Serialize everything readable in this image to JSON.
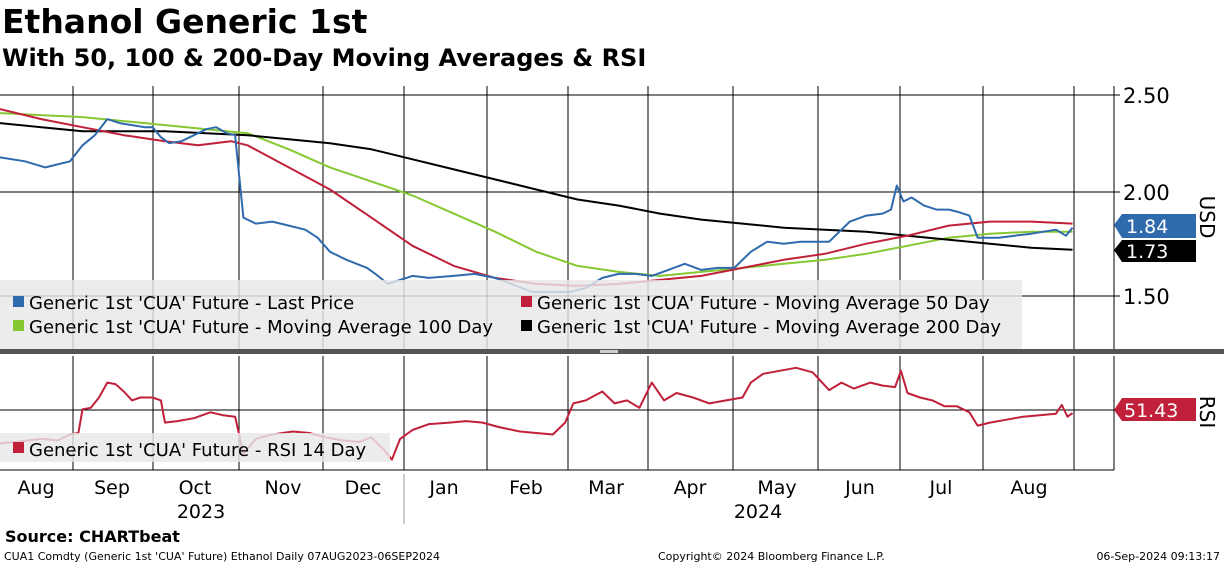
{
  "title": "Ethanol Generic 1st",
  "subtitle": "With 50, 100 & 200-Day Moving Averages & RSI",
  "source": "Source: CHARTbeat",
  "footer": {
    "left": "CUA1 Comdty (Generic 1st 'CUA' Future) Ethanol  Daily 07AUG2023-06SEP2024",
    "center": "Copyright© 2024 Bloomberg Finance L.P.",
    "right": "06-Sep-2024 09:13:17"
  },
  "colors": {
    "price": "#2f6aad",
    "ma50": "#c0203a",
    "ma100": "#86c832",
    "ma200": "#000000",
    "rsi": "#c0203a"
  },
  "chart_data": [
    {
      "type": "line",
      "panel": "price",
      "ylabel": "USD",
      "ylim": [
        1.28,
        2.55
      ],
      "yticks": [
        "2.50",
        "2.00",
        "1.50"
      ],
      "legend_position": "bottom-left",
      "x_months": [
        "Aug",
        "Sep",
        "Oct",
        "Nov",
        "Dec",
        "Jan",
        "Feb",
        "Mar",
        "Apr",
        "May",
        "Jun",
        "Jul",
        "Aug"
      ],
      "x_years": [
        "2023",
        "2024"
      ],
      "series": [
        {
          "name": "Generic 1st 'CUA' Future - Last Price",
          "color_key": "price",
          "last_label": "1.84",
          "points": [
            [
              0,
              2.19
            ],
            [
              0.3,
              2.17
            ],
            [
              0.55,
              2.14
            ],
            [
              0.85,
              2.17
            ],
            [
              1,
              2.25
            ],
            [
              1.15,
              2.3
            ],
            [
              1.3,
              2.38
            ],
            [
              1.45,
              2.36
            ],
            [
              1.6,
              2.35
            ],
            [
              1.75,
              2.34
            ],
            [
              1.85,
              2.34
            ],
            [
              1.95,
              2.29
            ],
            [
              2.05,
              2.26
            ],
            [
              2.2,
              2.27
            ],
            [
              2.35,
              2.3
            ],
            [
              2.5,
              2.33
            ],
            [
              2.62,
              2.34
            ],
            [
              2.75,
              2.31
            ],
            [
              2.85,
              2.3
            ],
            [
              2.95,
              1.89
            ],
            [
              3.1,
              1.86
            ],
            [
              3.3,
              1.87
            ],
            [
              3.5,
              1.85
            ],
            [
              3.7,
              1.83
            ],
            [
              3.85,
              1.79
            ],
            [
              4.0,
              1.72
            ],
            [
              4.2,
              1.68
            ],
            [
              4.45,
              1.64
            ],
            [
              4.55,
              1.61
            ],
            [
              4.7,
              1.56
            ],
            [
              4.85,
              1.58
            ],
            [
              5.0,
              1.6
            ],
            [
              5.2,
              1.59
            ],
            [
              5.5,
              1.6
            ],
            [
              5.75,
              1.61
            ],
            [
              6.0,
              1.59
            ],
            [
              6.2,
              1.56
            ],
            [
              6.45,
              1.52
            ],
            [
              6.7,
              1.52
            ],
            [
              6.9,
              1.52
            ],
            [
              7.1,
              1.54
            ],
            [
              7.3,
              1.59
            ],
            [
              7.5,
              1.61
            ],
            [
              7.7,
              1.61
            ],
            [
              7.9,
              1.6
            ],
            [
              8.1,
              1.63
            ],
            [
              8.3,
              1.66
            ],
            [
              8.5,
              1.63
            ],
            [
              8.7,
              1.64
            ],
            [
              8.9,
              1.64
            ],
            [
              9.1,
              1.72
            ],
            [
              9.3,
              1.77
            ],
            [
              9.5,
              1.76
            ],
            [
              9.7,
              1.77
            ],
            [
              9.9,
              1.77
            ],
            [
              10.05,
              1.77
            ],
            [
              10.3,
              1.87
            ],
            [
              10.5,
              1.9
            ],
            [
              10.7,
              1.91
            ],
            [
              10.8,
              1.93
            ],
            [
              10.87,
              2.05
            ],
            [
              10.95,
              1.97
            ],
            [
              11.05,
              1.99
            ],
            [
              11.2,
              1.95
            ],
            [
              11.35,
              1.93
            ],
            [
              11.5,
              1.93
            ],
            [
              11.6,
              1.92
            ],
            [
              11.75,
              1.9
            ],
            [
              11.85,
              1.79
            ],
            [
              11.95,
              1.79
            ],
            [
              12.1,
              1.79
            ],
            [
              12.3,
              1.8
            ],
            [
              12.5,
              1.81
            ],
            [
              12.65,
              1.82
            ],
            [
              12.8,
              1.83
            ],
            [
              12.92,
              1.8
            ],
            [
              13.0,
              1.84
            ]
          ]
        },
        {
          "name": "Generic 1st 'CUA' Future - Moving Average 50 Day",
          "color_key": "ma50",
          "points": [
            [
              0,
              2.43
            ],
            [
              0.5,
              2.38
            ],
            [
              1.0,
              2.34
            ],
            [
              1.5,
              2.3
            ],
            [
              2.0,
              2.27
            ],
            [
              2.4,
              2.25
            ],
            [
              2.8,
              2.27
            ],
            [
              3.0,
              2.25
            ],
            [
              3.5,
              2.14
            ],
            [
              4.0,
              2.03
            ],
            [
              4.5,
              1.89
            ],
            [
              5.0,
              1.75
            ],
            [
              5.5,
              1.65
            ],
            [
              6.0,
              1.59
            ],
            [
              6.5,
              1.56
            ],
            [
              7.0,
              1.55
            ],
            [
              7.5,
              1.56
            ],
            [
              8.0,
              1.58
            ],
            [
              8.5,
              1.6
            ],
            [
              9.0,
              1.64
            ],
            [
              9.5,
              1.68
            ],
            [
              10.0,
              1.71
            ],
            [
              10.5,
              1.76
            ],
            [
              11.0,
              1.8
            ],
            [
              11.5,
              1.85
            ],
            [
              12.0,
              1.87
            ],
            [
              12.5,
              1.87
            ],
            [
              13.0,
              1.86
            ]
          ]
        },
        {
          "name": "Generic 1st 'CUA' Future - Moving Average 100 Day",
          "color_key": "ma100",
          "points": [
            [
              0,
              2.41
            ],
            [
              0.5,
              2.4
            ],
            [
              1.0,
              2.39
            ],
            [
              1.5,
              2.37
            ],
            [
              2.0,
              2.35
            ],
            [
              2.5,
              2.33
            ],
            [
              3.0,
              2.31
            ],
            [
              3.5,
              2.23
            ],
            [
              4.0,
              2.14
            ],
            [
              4.5,
              2.07
            ],
            [
              5.0,
              2.0
            ],
            [
              5.5,
              1.91
            ],
            [
              6.0,
              1.82
            ],
            [
              6.5,
              1.72
            ],
            [
              7.0,
              1.65
            ],
            [
              7.5,
              1.62
            ],
            [
              8.0,
              1.6
            ],
            [
              8.5,
              1.62
            ],
            [
              9.0,
              1.64
            ],
            [
              9.5,
              1.66
            ],
            [
              10.0,
              1.68
            ],
            [
              10.5,
              1.71
            ],
            [
              11.0,
              1.75
            ],
            [
              11.5,
              1.79
            ],
            [
              12.0,
              1.81
            ],
            [
              12.5,
              1.82
            ],
            [
              13.0,
              1.82
            ]
          ]
        },
        {
          "name": "Generic 1st 'CUA' Future - Moving Average 200 Day",
          "color_key": "ma200",
          "last_label": "1.73",
          "points": [
            [
              0,
              2.36
            ],
            [
              0.5,
              2.34
            ],
            [
              1.0,
              2.32
            ],
            [
              1.5,
              2.32
            ],
            [
              2.0,
              2.32
            ],
            [
              2.5,
              2.31
            ],
            [
              3.0,
              2.3
            ],
            [
              3.5,
              2.28
            ],
            [
              4.0,
              2.26
            ],
            [
              4.5,
              2.23
            ],
            [
              5.0,
              2.18
            ],
            [
              5.5,
              2.13
            ],
            [
              6.0,
              2.08
            ],
            [
              6.5,
              2.03
            ],
            [
              7.0,
              1.98
            ],
            [
              7.5,
              1.95
            ],
            [
              8.0,
              1.91
            ],
            [
              8.5,
              1.88
            ],
            [
              9.0,
              1.86
            ],
            [
              9.5,
              1.84
            ],
            [
              10.0,
              1.83
            ],
            [
              10.5,
              1.82
            ],
            [
              11.0,
              1.8
            ],
            [
              11.5,
              1.78
            ],
            [
              12.0,
              1.76
            ],
            [
              12.5,
              1.74
            ],
            [
              13.0,
              1.73
            ]
          ]
        }
      ]
    },
    {
      "type": "line",
      "panel": "rsi",
      "ylabel": "RSI",
      "ylim": [
        13,
        90
      ],
      "legend_position": "bottom-left",
      "series": [
        {
          "name": "Generic 1st 'CUA' Future - RSI 14 Day",
          "color_key": "rsi",
          "last_label": "51.43",
          "points": [
            [
              0,
              31
            ],
            [
              0.2,
              32
            ],
            [
              0.5,
              34
            ],
            [
              0.7,
              33
            ],
            [
              0.85,
              37
            ],
            [
              0.95,
              38
            ],
            [
              1.0,
              54
            ],
            [
              1.1,
              55
            ],
            [
              1.2,
              62
            ],
            [
              1.3,
              72
            ],
            [
              1.4,
              71
            ],
            [
              1.5,
              66
            ],
            [
              1.6,
              60
            ],
            [
              1.7,
              62
            ],
            [
              1.85,
              62
            ],
            [
              1.95,
              60
            ],
            [
              2.0,
              45
            ],
            [
              2.15,
              46
            ],
            [
              2.35,
              48
            ],
            [
              2.55,
              52
            ],
            [
              2.7,
              50
            ],
            [
              2.85,
              49
            ],
            [
              2.95,
              24
            ],
            [
              3.1,
              34
            ],
            [
              3.3,
              37
            ],
            [
              3.55,
              39
            ],
            [
              3.75,
              38
            ],
            [
              3.95,
              35
            ],
            [
              4.15,
              33
            ],
            [
              4.35,
              32
            ],
            [
              4.5,
              35
            ],
            [
              4.65,
              27
            ],
            [
              4.75,
              20
            ],
            [
              4.85,
              34
            ],
            [
              5.0,
              40
            ],
            [
              5.2,
              44
            ],
            [
              5.45,
              45
            ],
            [
              5.65,
              46
            ],
            [
              5.85,
              45
            ],
            [
              6.05,
              42
            ],
            [
              6.3,
              39
            ],
            [
              6.5,
              38
            ],
            [
              6.7,
              37
            ],
            [
              6.85,
              45
            ],
            [
              6.95,
              58
            ],
            [
              7.1,
              60
            ],
            [
              7.3,
              66
            ],
            [
              7.45,
              58
            ],
            [
              7.6,
              60
            ],
            [
              7.75,
              55
            ],
            [
              7.9,
              72
            ],
            [
              8.05,
              60
            ],
            [
              8.2,
              65
            ],
            [
              8.4,
              62
            ],
            [
              8.6,
              58
            ],
            [
              8.8,
              60
            ],
            [
              9.0,
              62
            ],
            [
              9.1,
              72
            ],
            [
              9.25,
              78
            ],
            [
              9.45,
              80
            ],
            [
              9.65,
              82
            ],
            [
              9.85,
              79
            ],
            [
              10.05,
              67
            ],
            [
              10.2,
              72
            ],
            [
              10.35,
              68
            ],
            [
              10.55,
              72
            ],
            [
              10.7,
              70
            ],
            [
              10.85,
              69
            ],
            [
              10.92,
              80
            ],
            [
              11.0,
              65
            ],
            [
              11.15,
              62
            ],
            [
              11.3,
              60
            ],
            [
              11.45,
              56
            ],
            [
              11.6,
              56
            ],
            [
              11.75,
              52
            ],
            [
              11.85,
              43
            ],
            [
              12.0,
              45
            ],
            [
              12.2,
              47
            ],
            [
              12.4,
              49
            ],
            [
              12.6,
              50
            ],
            [
              12.8,
              51
            ],
            [
              12.87,
              57
            ],
            [
              12.94,
              49
            ],
            [
              13.0,
              51.43
            ]
          ]
        }
      ]
    }
  ]
}
